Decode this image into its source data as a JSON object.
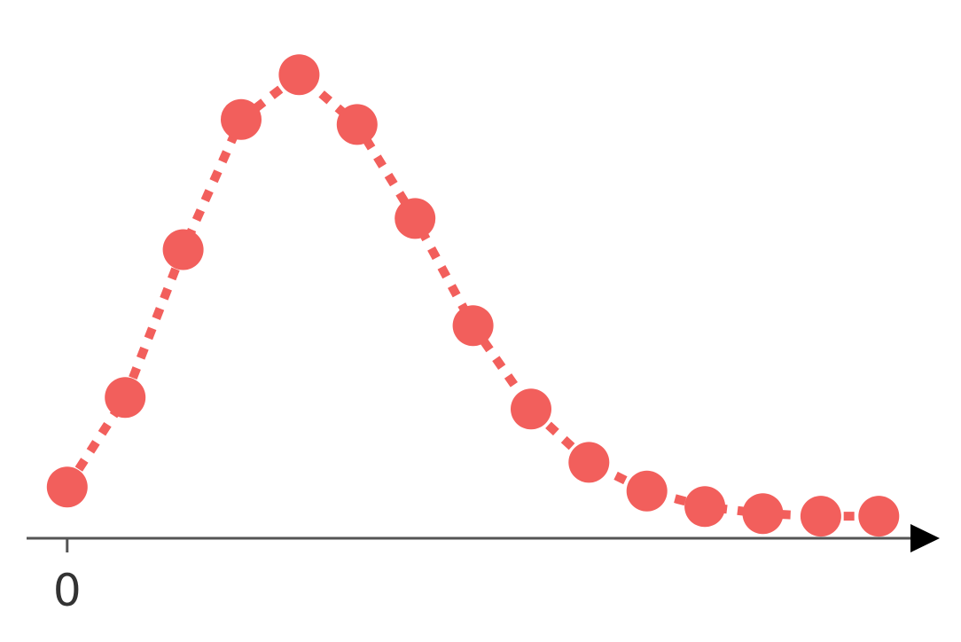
{
  "chart_data": {
    "type": "line",
    "title": "",
    "xlabel": "",
    "ylabel": "",
    "x": [
      0,
      1,
      2,
      3,
      4,
      5,
      6,
      7,
      8,
      9,
      10,
      11,
      12,
      13,
      14
    ],
    "series": [
      {
        "values": [
          0.102,
          0.28,
          0.574,
          0.833,
          0.922,
          0.823,
          0.636,
          0.423,
          0.257,
          0.151,
          0.094,
          0.063,
          0.049,
          0.044,
          0.044
        ]
      }
    ],
    "x_tick_labels": [
      {
        "x": 0,
        "label": "0"
      }
    ],
    "xlim": [
      -0.7,
      15.05
    ],
    "ylim": [
      0,
      1
    ],
    "y_axis_visible": false,
    "x_axis_arrow": true,
    "grid": false,
    "line_style": "dotted",
    "marker": "circle",
    "colors": {
      "series": "#f25f5c",
      "axis": "#555555",
      "arrow": "#000000",
      "tick_label": "#333333"
    }
  }
}
